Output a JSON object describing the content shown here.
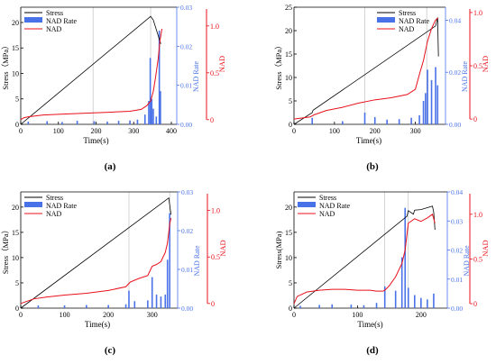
{
  "colors": {
    "stress": "#000000",
    "nad": "#e8101a",
    "rate": "#4a72e8",
    "guide": "#b8b8b8"
  },
  "legend": {
    "stress": "Stress",
    "rate": "NAD Rate",
    "nad": "NAD"
  },
  "chart_data": [
    {
      "type": "line",
      "panel_label": "(a)",
      "xlabel": "Time(s)",
      "ylabel_left": "Stress（MPa）",
      "ylabel_rate": "NAD Rate",
      "ylabel_nad": "NAD",
      "xlim": [
        0,
        400
      ],
      "xticks": [
        0,
        100,
        200,
        300,
        400
      ],
      "ylim_stress": [
        0,
        23
      ],
      "yticks_stress": [
        0,
        5,
        10,
        15,
        20
      ],
      "ylim_rate": [
        0,
        0.03
      ],
      "yticks_rate": [
        "0.00",
        "0.01",
        "0.02",
        "0.03"
      ],
      "ylim_nad": [
        -0.05,
        1.2
      ],
      "yticks_nad": [
        "0",
        "0.5",
        "1.0"
      ],
      "guides_x": [
        192,
        345
      ],
      "legend_position": "top-left",
      "stress": {
        "x": [
          0,
          345,
          352,
          372
        ],
        "y": [
          0,
          21.2,
          20.5,
          15.8
        ]
      },
      "nad": {
        "x": [
          0,
          8,
          20,
          60,
          120,
          180,
          240,
          290,
          320,
          335,
          345,
          352,
          358,
          365,
          370,
          375
        ],
        "y": [
          0,
          0.02,
          0.03,
          0.05,
          0.06,
          0.07,
          0.08,
          0.09,
          0.11,
          0.15,
          0.2,
          0.3,
          0.45,
          0.65,
          0.85,
          0.97
        ]
      },
      "rate": {
        "x": [
          20,
          70,
          110,
          150,
          195,
          230,
          260,
          290,
          310,
          330,
          340,
          344,
          348,
          352,
          360,
          368,
          371
        ],
        "y": [
          0.0007,
          0.0008,
          0.0006,
          0.0009,
          0.0008,
          0.0007,
          0.0009,
          0.001,
          0.0012,
          0.0025,
          0.006,
          0.017,
          0.0065,
          0.004,
          0.002,
          0.024,
          0.0085
        ]
      }
    },
    {
      "type": "line",
      "panel_label": "(b)",
      "xlabel": "Time(s)",
      "ylabel_left": "Stress（MPa）",
      "ylabel_rate": "NAD Rate",
      "ylabel_nad": "NAD",
      "xlim": [
        0,
        370
      ],
      "xticks": [
        0,
        100,
        200,
        300
      ],
      "ylim_stress": [
        0,
        25
      ],
      "yticks_stress": [
        0,
        5,
        10,
        15,
        20,
        25
      ],
      "ylim_rate": [
        0,
        0.045
      ],
      "yticks_rate": [
        "0.00",
        "0.02",
        "0.04"
      ],
      "ylim_nad": [
        -0.05,
        1.05
      ],
      "yticks_nad": [
        "0",
        "0.5",
        "1.0"
      ],
      "guides_x": [
        175,
        328
      ],
      "legend_position": "top-right",
      "stress": {
        "x": [
          0,
          45,
          47,
          350,
          355,
          357
        ],
        "y": [
          0,
          2.5,
          3.0,
          21.0,
          22.8,
          14.5
        ]
      },
      "nad": {
        "x": [
          0,
          40,
          50,
          80,
          120,
          160,
          200,
          240,
          280,
          300,
          310,
          320,
          330,
          340,
          350,
          356
        ],
        "y": [
          0,
          0.02,
          0.04,
          0.08,
          0.11,
          0.15,
          0.18,
          0.2,
          0.23,
          0.28,
          0.42,
          0.55,
          0.73,
          0.85,
          0.93,
          0.95
        ]
      },
      "rate": {
        "x": [
          45,
          120,
          175,
          200,
          230,
          260,
          290,
          310,
          320,
          325,
          330,
          340,
          350,
          355
        ],
        "y": [
          0.0025,
          0.0012,
          0.0045,
          0.0028,
          0.0018,
          0.002,
          0.0025,
          0.0035,
          0.009,
          0.012,
          0.021,
          0.017,
          0.022,
          0.015
        ]
      }
    },
    {
      "type": "line",
      "panel_label": "(c)",
      "xlabel": "Time(s)",
      "ylabel_left": "Stress（MPa）",
      "ylabel_rate": "NAD Rate",
      "ylabel_nad": "NAD",
      "xlim": [
        0,
        350
      ],
      "xticks": [
        0,
        100,
        200,
        300
      ],
      "ylim_stress": [
        0,
        23
      ],
      "yticks_stress": [
        0,
        5,
        10,
        15,
        20
      ],
      "ylim_rate": [
        0,
        0.03
      ],
      "yticks_rate": [
        "0.00",
        "0.01",
        "0.02",
        "0.03"
      ],
      "ylim_nad": [
        -0.05,
        1.2
      ],
      "yticks_nad": [
        "0",
        "0.5",
        "1.0"
      ],
      "guides_x": [
        247,
        340
      ],
      "legend_position": "top-left",
      "stress": {
        "x": [
          0,
          338,
          340,
          343
        ],
        "y": [
          0,
          21.8,
          20.5,
          18.5
        ]
      },
      "nad": {
        "x": [
          0,
          30,
          60,
          100,
          150,
          200,
          240,
          250,
          270,
          290,
          300,
          310,
          320,
          330,
          335,
          340,
          343
        ],
        "y": [
          0,
          0.05,
          0.07,
          0.09,
          0.11,
          0.14,
          0.18,
          0.23,
          0.27,
          0.3,
          0.4,
          0.42,
          0.45,
          0.55,
          0.65,
          0.85,
          0.92
        ]
      },
      "rate": {
        "x": [
          40,
          100,
          150,
          200,
          240,
          247,
          260,
          290,
          300,
          310,
          320,
          330,
          335,
          340
        ],
        "y": [
          0.0007,
          0.0007,
          0.0008,
          0.0008,
          0.001,
          0.0045,
          0.0018,
          0.002,
          0.008,
          0.0035,
          0.003,
          0.0035,
          0.0125,
          0.0245
        ]
      }
    },
    {
      "type": "line",
      "panel_label": "(d)",
      "xlabel": "Time(s)",
      "ylabel_left": "Stress(MPa)",
      "ylabel_rate": "NAD Rate",
      "ylabel_nad": "NAD",
      "xlim": [
        0,
        240
      ],
      "xticks": [
        0,
        100,
        200
      ],
      "ylim_stress": [
        0,
        23
      ],
      "yticks_stress": [
        0,
        5,
        10,
        15,
        20
      ],
      "ylim_rate": [
        0,
        0.04
      ],
      "yticks_rate": [
        "0.00",
        "0.01",
        "0.02",
        "0.03",
        "0.04"
      ],
      "ylim_nad": [
        -0.05,
        1.25
      ],
      "yticks_nad": [
        "0",
        "0.5",
        "1.0"
      ],
      "guides_x": [
        143,
        180
      ],
      "legend_position": "top-left",
      "stress": {
        "x": [
          0,
          178,
          180,
          188,
          190,
          200,
          218,
          220,
          222
        ],
        "y": [
          0,
          18.2,
          19.3,
          18.6,
          19.4,
          19.5,
          20.2,
          19.0,
          15.5
        ]
      },
      "nad": {
        "x": [
          0,
          5,
          20,
          40,
          60,
          80,
          100,
          120,
          130,
          140,
          143,
          150,
          160,
          170,
          175,
          180,
          190,
          200,
          210,
          218,
          222
        ],
        "y": [
          0,
          0.08,
          0.13,
          0.15,
          0.16,
          0.16,
          0.15,
          0.15,
          0.14,
          0.14,
          0.15,
          0.2,
          0.3,
          0.45,
          0.6,
          0.9,
          0.95,
          0.92,
          0.96,
          1.0,
          0.9
        ]
      },
      "rate": {
        "x": [
          10,
          40,
          60,
          90,
          110,
          130,
          143,
          160,
          170,
          175,
          180,
          190,
          200,
          210,
          220
        ],
        "y": [
          0.0008,
          0.0011,
          0.0013,
          0.0012,
          0.001,
          0.0018,
          0.0075,
          0.006,
          0.0175,
          0.0345,
          0.007,
          0.0045,
          0.0035,
          0.003,
          0.005
        ]
      }
    }
  ]
}
